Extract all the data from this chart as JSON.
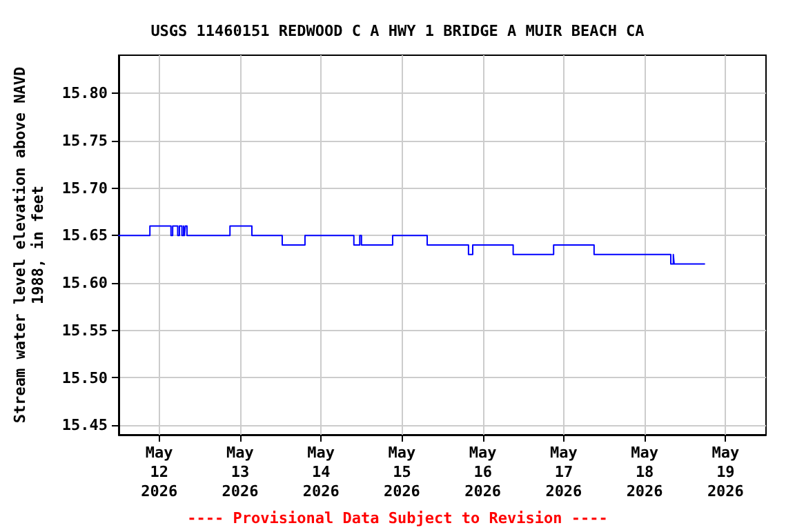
{
  "chart_data": {
    "type": "step",
    "title": "USGS 11460151 REDWOOD C A HWY 1 BRIDGE A MUIR BEACH CA",
    "ylabel": "Stream water level elevation above NAVD\n1988, in feet",
    "annotations": [
      "---- Provisional Data Subject to Revision ----"
    ],
    "x": [
      "2026-05-11T12:00",
      "2026-05-11T21:15",
      "2026-05-12T03:30",
      "2026-05-12T04:00",
      "2026-05-12T05:30",
      "2026-05-12T06:00",
      "2026-05-12T06:45",
      "2026-05-12T07:15",
      "2026-05-12T07:30",
      "2026-05-12T07:45",
      "2026-05-12T08:15",
      "2026-05-12T21:00",
      "2026-05-13T03:30",
      "2026-05-13T12:30",
      "2026-05-13T19:15",
      "2026-05-14T09:45",
      "2026-05-14T11:30",
      "2026-05-14T12:00",
      "2026-05-14T21:15",
      "2026-05-15T07:30",
      "2026-05-15T19:45",
      "2026-05-15T21:00",
      "2026-05-16T09:00",
      "2026-05-16T21:00",
      "2026-05-17T09:00",
      "2026-05-18T07:45",
      "2026-05-18T08:30",
      "2026-05-18T08:45",
      "2026-05-18T17:45"
    ],
    "series": [
      {
        "color": "#0000ff",
        "values": [
          15.65,
          15.66,
          15.65,
          15.66,
          15.65,
          15.66,
          15.65,
          15.66,
          15.65,
          15.66,
          15.65,
          15.66,
          15.65,
          15.64,
          15.65,
          15.64,
          15.65,
          15.64,
          15.65,
          15.64,
          15.63,
          15.64,
          15.63,
          15.64,
          15.63,
          15.62,
          15.63,
          15.62,
          15.62
        ]
      }
    ],
    "xlim": [
      "2026-05-11T12:00",
      "2026-05-19T12:00"
    ],
    "xticks": [
      {
        "value": "2026-05-12",
        "label": "May\n12\n2026"
      },
      {
        "value": "2026-05-13",
        "label": "May\n13\n2026"
      },
      {
        "value": "2026-05-14",
        "label": "May\n14\n2026"
      },
      {
        "value": "2026-05-15",
        "label": "May\n15\n2026"
      },
      {
        "value": "2026-05-16",
        "label": "May\n16\n2026"
      },
      {
        "value": "2026-05-17",
        "label": "May\n17\n2026"
      },
      {
        "value": "2026-05-18",
        "label": "May\n18\n2026"
      },
      {
        "value": "2026-05-19",
        "label": "May\n19\n2026"
      }
    ],
    "ylim": [
      15.44,
      15.84
    ],
    "yticks": [
      {
        "value": 15.45,
        "label": "15.45"
      },
      {
        "value": 15.5,
        "label": "15.50"
      },
      {
        "value": 15.55,
        "label": "15.55"
      },
      {
        "value": 15.6,
        "label": "15.60"
      },
      {
        "value": 15.65,
        "label": "15.65"
      },
      {
        "value": 15.7,
        "label": "15.70"
      },
      {
        "value": 15.75,
        "label": "15.75"
      },
      {
        "value": 15.8,
        "label": "15.80"
      }
    ],
    "grid": true,
    "marker": "none",
    "line_style": "solid"
  }
}
